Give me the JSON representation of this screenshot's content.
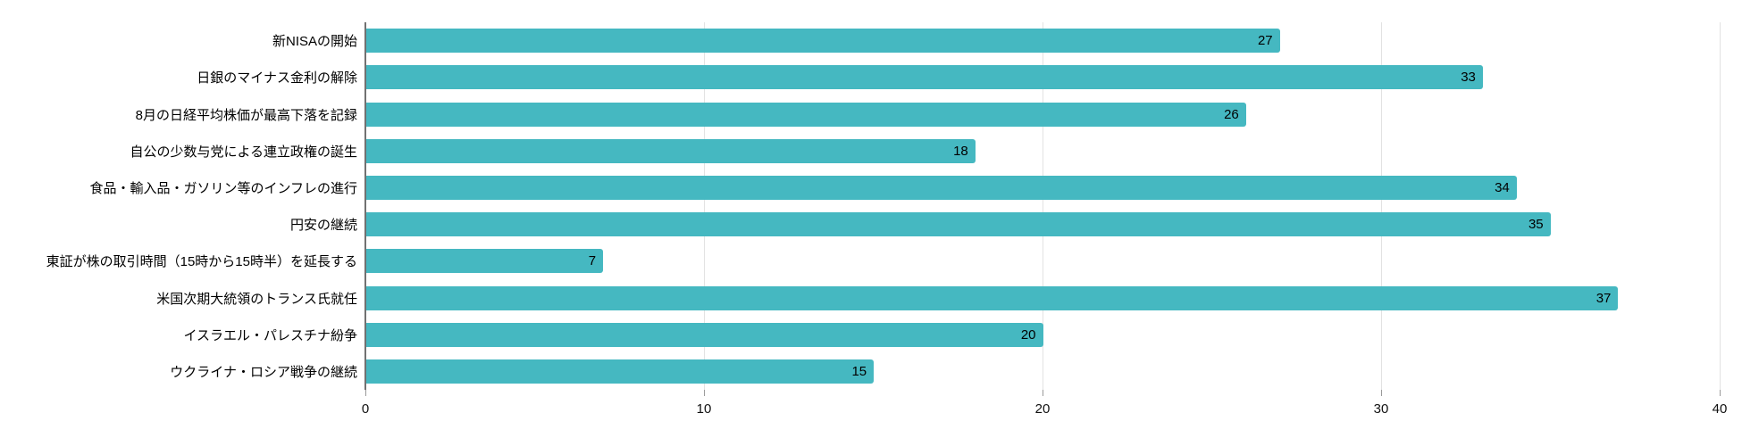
{
  "chart_data": {
    "type": "bar",
    "orientation": "horizontal",
    "title": "",
    "xlabel": "",
    "ylabel": "",
    "xlim": [
      0,
      40
    ],
    "x_ticks": [
      0,
      10,
      20,
      30,
      40
    ],
    "grid": true,
    "legend_position": "none",
    "bar_color": "#45b8c1",
    "value_label_color": "#000000",
    "categories": [
      "新NISAの開始",
      "日銀のマイナス金利の解除",
      "8月の日経平均株価が最高下落を記録",
      "自公の少数与党による連立政権の誕生",
      "食品・輸入品・ガソリン等のインフレの進行",
      "円安の継続",
      "東証が株の取引時間（15時から15時半）を延長する",
      "米国次期大統領のトランス氏就任",
      "イスラエル・パレスチナ紛争",
      "ウクライナ・ロシア戦争の継続"
    ],
    "values": [
      27,
      33,
      26,
      18,
      34,
      35,
      7,
      37,
      20,
      15
    ]
  }
}
